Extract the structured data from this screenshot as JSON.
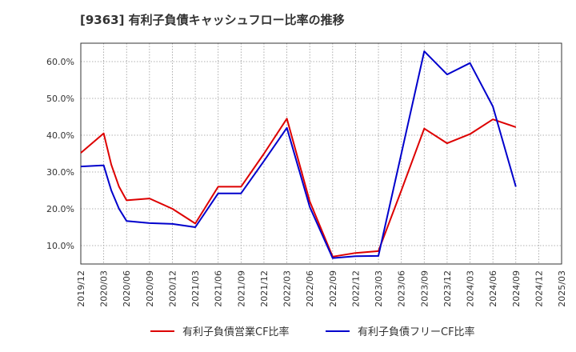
{
  "title": "[9363]  有利子負債キャッシュフロー比率の推移",
  "chart_data": {
    "type": "line",
    "x": [
      "2019/12",
      "2020/03",
      "2020/06",
      "2020/09",
      "2020/12",
      "2021/03",
      "2021/06",
      "2021/09",
      "2021/12",
      "2022/03",
      "2022/06",
      "2022/09",
      "2022/12",
      "2023/03",
      "2023/06",
      "2023/09",
      "2023/12",
      "2024/03",
      "2024/06",
      "2024/09",
      "2024/12",
      "2025/03"
    ],
    "y_ticks": [
      "10.0%",
      "20.0%",
      "30.0%",
      "40.0%",
      "50.0%",
      "60.0%"
    ],
    "ylim": [
      5,
      65
    ],
    "grid": true,
    "legend_position": "bottom",
    "series": [
      {
        "name": "有利子負債営業CF比率",
        "color": "#dd0000",
        "points": [
          [
            0,
            35.2
          ],
          [
            1,
            40.5
          ],
          [
            1.33,
            32.0
          ],
          [
            1.67,
            26.0
          ],
          [
            2,
            22.3
          ],
          [
            3,
            22.8
          ],
          [
            4,
            20.0
          ],
          [
            5,
            16.0
          ],
          [
            6,
            26.0
          ],
          [
            7,
            26.0
          ],
          [
            8,
            35.0
          ],
          [
            9,
            44.5
          ],
          [
            10,
            22.0
          ],
          [
            11,
            7.0
          ],
          [
            12,
            8.0
          ],
          [
            13,
            8.5
          ],
          [
            14,
            25.0
          ],
          [
            15,
            41.8
          ],
          [
            16,
            37.8
          ],
          [
            17,
            40.3
          ],
          [
            18,
            44.3
          ],
          [
            19,
            42.2
          ]
        ]
      },
      {
        "name": "有利子負債フリーCF比率",
        "color": "#0000cc",
        "points": [
          [
            0,
            31.5
          ],
          [
            1,
            31.8
          ],
          [
            1.33,
            25.0
          ],
          [
            1.67,
            20.0
          ],
          [
            2,
            16.7
          ],
          [
            3,
            16.1
          ],
          [
            4,
            15.9
          ],
          [
            5,
            15.0
          ],
          [
            6,
            24.2
          ],
          [
            7,
            24.2
          ],
          [
            8,
            33.0
          ],
          [
            9,
            42.0
          ],
          [
            10,
            20.5
          ],
          [
            11,
            6.6
          ],
          [
            12,
            7.1
          ],
          [
            13,
            7.2
          ],
          [
            14,
            35.0
          ],
          [
            15,
            62.8
          ],
          [
            16,
            56.5
          ],
          [
            17,
            59.6
          ],
          [
            18,
            47.8
          ],
          [
            19,
            26.0
          ]
        ]
      }
    ]
  }
}
